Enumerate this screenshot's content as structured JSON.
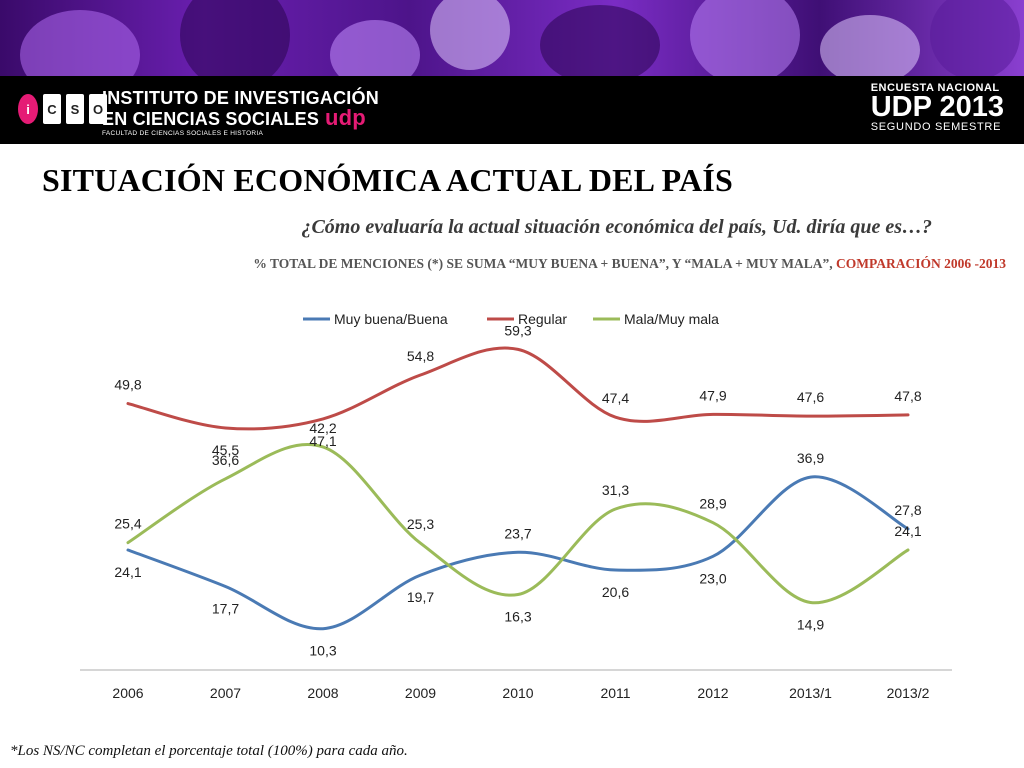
{
  "header": {
    "logo_letters": [
      "i",
      "C",
      "S",
      "O"
    ],
    "institute_line1": "INSTITUTO DE INVESTIGACIÓN",
    "institute_line2": "EN CIENCIAS SOCIALES",
    "brand": "udp",
    "faculty": "FACULTAD DE CIENCIAS SOCIALES E HISTORIA",
    "survey_line1": "ENCUESTA NACIONAL",
    "survey_line2": "UDP 2013",
    "survey_line3": "SEGUNDO SEMESTRE"
  },
  "title": "SITUACIÓN ECONÓMICA ACTUAL DEL PAÍS",
  "question": "¿Cómo evaluaría la actual situación económica del país, Ud. diría que es…?",
  "subtitle_main": "% TOTAL DE MENCIONES (*) SE SUMA “MUY BUENA + BUENA”, Y “MALA + MUY MALA”, ",
  "subtitle_highlight": "COMPARACIÓN 2006 -2013",
  "footnote": "*Los NS/NC completan el porcentaje total  (100%) para cada año.",
  "colors": {
    "blue": "#4a7ab4",
    "red": "#be4b48",
    "green": "#9bbb59",
    "subtitle_red": "#c0392b"
  },
  "chart_data": {
    "type": "line",
    "categories": [
      "2006",
      "2007",
      "2008",
      "2009",
      "2010",
      "2011",
      "2012",
      "2013/1",
      "2013/2"
    ],
    "series": [
      {
        "name": "Muy buena/Buena",
        "color": "#4a7ab4",
        "values": [
          24.1,
          17.7,
          10.3,
          19.7,
          23.7,
          20.6,
          23.0,
          36.9,
          27.8
        ],
        "labels": [
          "24,1",
          "17,7",
          "10,3",
          "19,7",
          "23,7",
          "20,6",
          "23,0",
          "36,9",
          "27,8"
        ]
      },
      {
        "name": "Regular",
        "color": "#be4b48",
        "values": [
          49.8,
          45.5,
          47.1,
          54.8,
          59.3,
          47.4,
          47.9,
          47.6,
          47.8
        ],
        "labels": [
          "49,8",
          "45,5",
          "47,1",
          "54,8",
          "59,3",
          "47,4",
          "47,9",
          "47,6",
          "47,8"
        ]
      },
      {
        "name": "Mala/Muy mala",
        "color": "#9bbb59",
        "values": [
          25.4,
          36.6,
          42.2,
          25.3,
          16.3,
          31.3,
          28.9,
          14.9,
          24.1
        ],
        "labels": [
          "25,4",
          "36,6",
          "42,2",
          "25,3",
          "16,3",
          "31,3",
          "28,9",
          "14,9",
          "24,1"
        ]
      }
    ],
    "legend_position": "top",
    "grid": false,
    "smooth": true
  }
}
